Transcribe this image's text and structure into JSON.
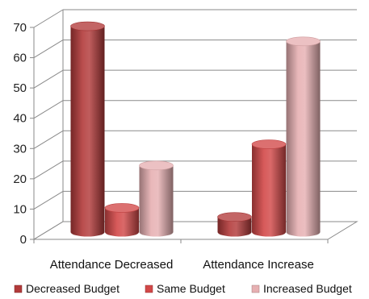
{
  "chart_data": {
    "type": "bar",
    "categories": [
      "Attendance Decreased",
      "Attendance Increase"
    ],
    "series": [
      {
        "name": "Decreased Budget",
        "values": [
          68,
          5
        ],
        "color": "#b23a3a"
      },
      {
        "name": "Same Budget",
        "values": [
          8,
          29
        ],
        "color": "#d24848"
      },
      {
        "name": "Increased Budget",
        "values": [
          22,
          63
        ],
        "color": "#e6b0b2"
      }
    ],
    "ylim": [
      0,
      70
    ],
    "yticks": [
      "0",
      "10",
      "20",
      "30",
      "40",
      "50",
      "60",
      "70"
    ],
    "grid": true,
    "legend_position": "bottom",
    "bar_style": "3d-cylinder"
  }
}
